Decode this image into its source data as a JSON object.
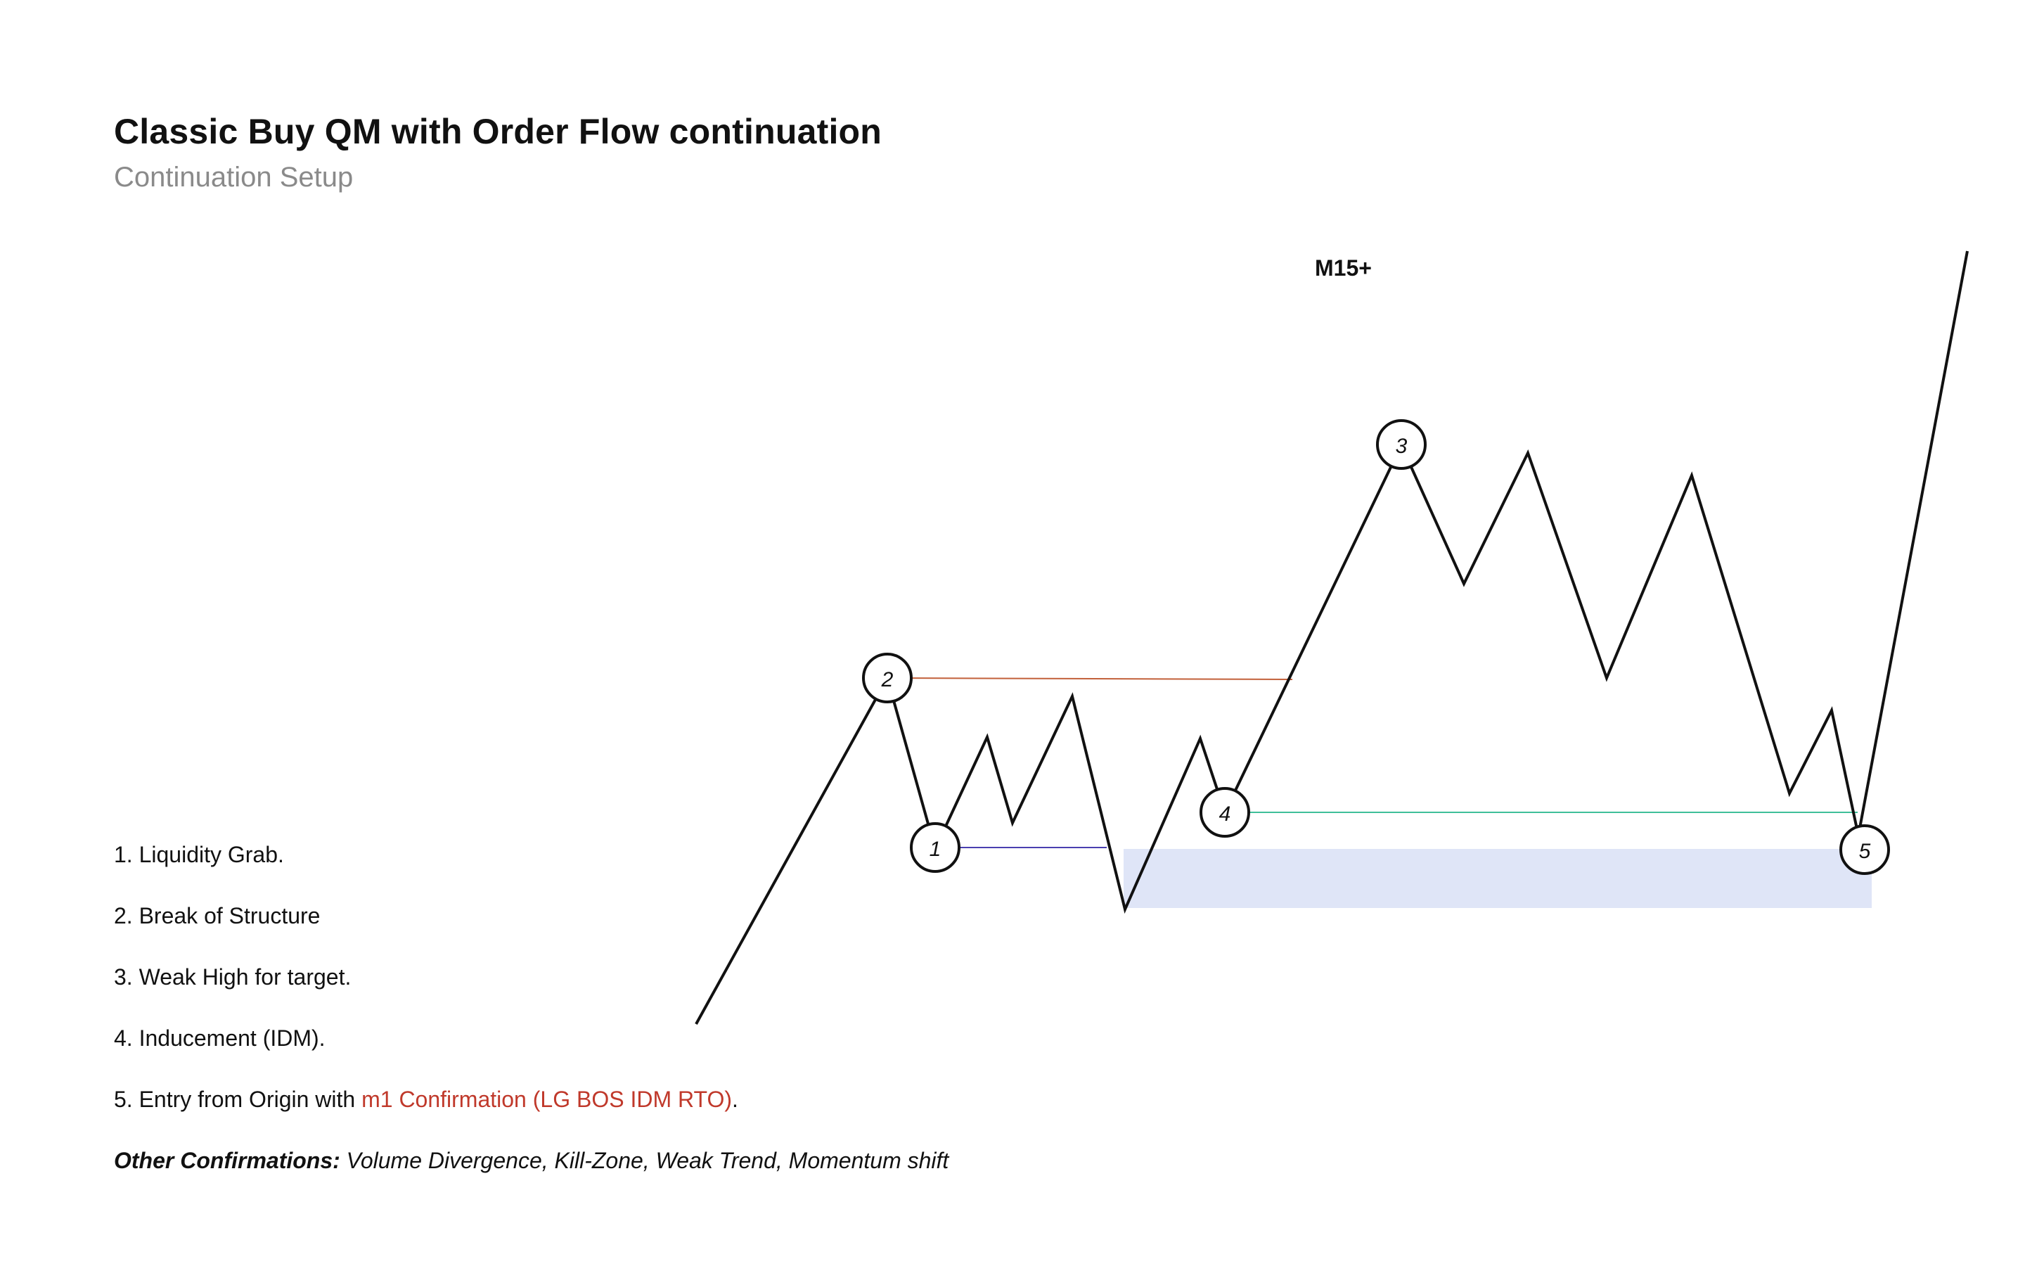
{
  "header": {
    "title": "Classic Buy QM with Order Flow continuation",
    "subtitle": "Continuation Setup"
  },
  "diagram": {
    "timeframe_label": "M15+",
    "markers": [
      {
        "label": "1"
      },
      {
        "label": "2"
      },
      {
        "label": "3"
      },
      {
        "label": "4"
      },
      {
        "label": "5"
      }
    ],
    "colors": {
      "price_line": "#111111",
      "bos_level": "#c2603a",
      "liquidity_level": "#4a3fb0",
      "idm_level": "#3fbf9a",
      "entry_zone": "#dfe5f7"
    }
  },
  "legend": {
    "items": [
      {
        "text": "1. Liquidity Grab."
      },
      {
        "text": "2. Break of Structure"
      },
      {
        "text": "3. Weak High for target."
      },
      {
        "text": "4. Inducement (IDM)."
      }
    ],
    "item5": {
      "prefix": "5. Entry from Origin with ",
      "highlight": "m1 Confirmation (LG BOS IDM RTO)",
      "suffix": "."
    },
    "other": {
      "label": "Other Confirmations:",
      "text": " Volume Divergence, Kill-Zone, Weak Trend, Momentum shift"
    }
  }
}
